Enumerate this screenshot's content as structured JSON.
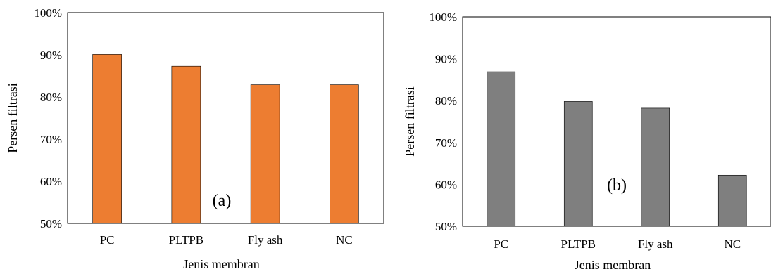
{
  "chart_data": [
    {
      "type": "bar",
      "panel_label": "(a)",
      "categories": [
        "PC",
        "PLTPB",
        "Fly ash",
        "NC"
      ],
      "values": [
        90.1,
        87.3,
        82.9,
        82.9
      ],
      "ylim": [
        50,
        100
      ],
      "yticks": [
        "50%",
        "60%",
        "70%",
        "80%",
        "90%",
        "100%"
      ],
      "xlabel": "Jenis membran",
      "ylabel": "Persen filtrasi",
      "bar_color": "#ED7D31",
      "grid": false,
      "legend": false
    },
    {
      "type": "bar",
      "panel_label": "(b)",
      "categories": [
        "PC",
        "PLTPB",
        "Fly ash",
        "NC"
      ],
      "values": [
        86.9,
        79.8,
        78.2,
        62.2
      ],
      "ylim": [
        50,
        100
      ],
      "yticks": [
        "50%",
        "60%",
        "70%",
        "80%",
        "90%",
        "100%"
      ],
      "xlabel": "Jenis membran",
      "ylabel": "Persen filtrasi",
      "bar_color": "#7F7F7F",
      "grid": false,
      "legend": false
    }
  ]
}
